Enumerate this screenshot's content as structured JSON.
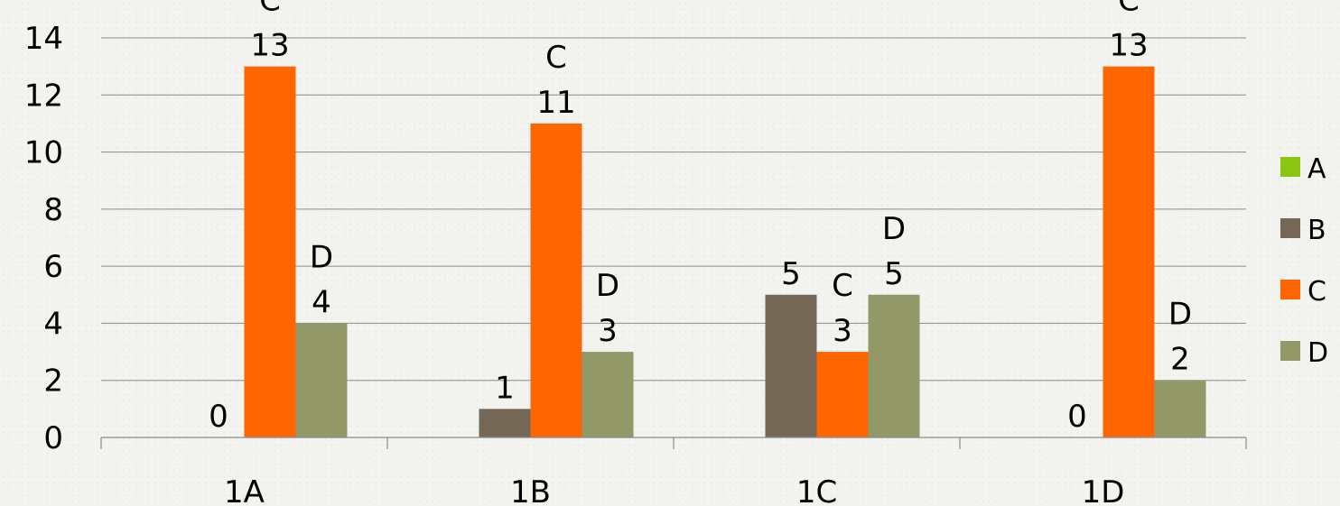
{
  "chart_data": {
    "type": "bar",
    "categories": [
      "1A",
      "1B",
      "1C",
      "1D"
    ],
    "series": [
      {
        "name": "A",
        "color": "#8cc511",
        "values": [
          0,
          0,
          0,
          0
        ]
      },
      {
        "name": "B",
        "color": "#756756",
        "values": [
          0,
          1,
          5,
          0
        ]
      },
      {
        "name": "C",
        "color": "#ff6600",
        "values": [
          13,
          11,
          3,
          13
        ]
      },
      {
        "name": "D",
        "color": "#929867",
        "values": [
          4,
          3,
          5,
          2
        ]
      }
    ],
    "data_labels": [
      [
        {
          "series": "B",
          "lines": [
            "0"
          ]
        },
        {
          "series": "C",
          "lines": [
            "C",
            "13"
          ]
        },
        {
          "series": "D",
          "lines": [
            "D",
            "4"
          ]
        }
      ],
      [
        {
          "series": "B",
          "lines": [
            "1"
          ]
        },
        {
          "series": "C",
          "lines": [
            "C",
            "11"
          ]
        },
        {
          "series": "D",
          "lines": [
            "D",
            "3"
          ]
        }
      ],
      [
        {
          "series": "B",
          "lines": [
            "5"
          ]
        },
        {
          "series": "C",
          "lines": [
            "C",
            "3"
          ]
        },
        {
          "series": "D",
          "lines": [
            "D",
            "5"
          ]
        }
      ],
      [
        {
          "series": "B",
          "lines": [
            "0"
          ]
        },
        {
          "series": "C",
          "lines": [
            "C",
            "13"
          ]
        },
        {
          "series": "D",
          "lines": [
            "D",
            "2"
          ]
        }
      ]
    ],
    "yticks": [
      "0",
      "2",
      "4",
      "6",
      "8",
      "10",
      "12",
      "14"
    ],
    "ylim": [
      0,
      14
    ],
    "xlabel": "",
    "ylabel": "",
    "title": "",
    "grid": true,
    "legend_position": "right"
  }
}
